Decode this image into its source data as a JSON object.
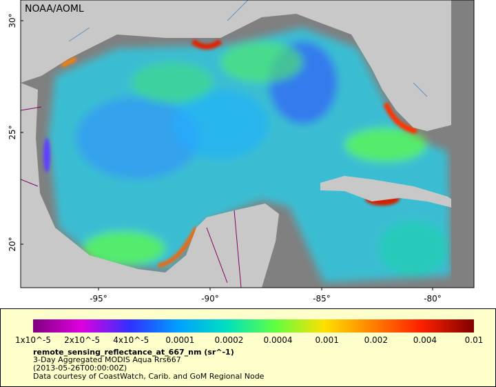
{
  "map": {
    "credit": "NOAA/AOML",
    "lat_labels": [
      "30°",
      "25°",
      "20°"
    ],
    "lon_labels": [
      "-95°",
      "-90°",
      "-85°",
      "-80°"
    ]
  },
  "legend": {
    "colorbar_labels": [
      "1x10^-5",
      "2x10^-5",
      "4x10^-5",
      "0.0001",
      "0.0002",
      "0.0004",
      "0.001",
      "0.002",
      "0.004",
      "0.01"
    ],
    "variable": "remote_sensing_reflectance_at_667_nm (sr^-1)",
    "lines": [
      "3-Day Aggregated MODIS Aqua Rrs667",
      "(2013-05-26T00:00:00Z)",
      "Data courtesy of CoastWatch, Carib. and GoM Regional Node"
    ]
  }
}
